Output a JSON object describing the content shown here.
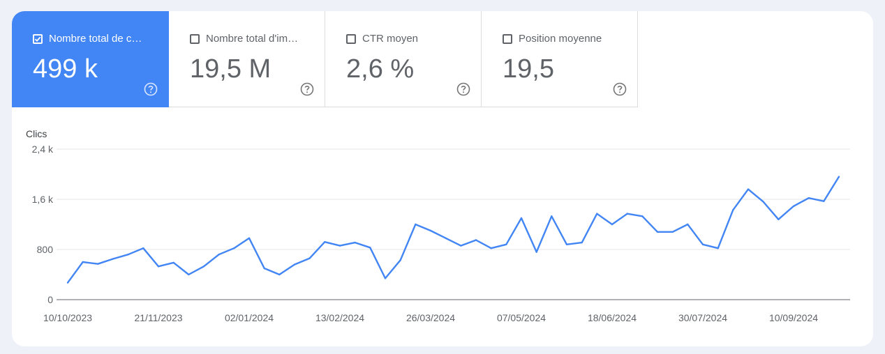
{
  "tiles": [
    {
      "label": "Nombre total de c…",
      "value": "499 k",
      "active": true,
      "name": "tile-clicks"
    },
    {
      "label": "Nombre total d'im…",
      "value": "19,5 M",
      "active": false,
      "name": "tile-impressions"
    },
    {
      "label": "CTR moyen",
      "value": "2,6 %",
      "active": false,
      "name": "tile-ctr"
    },
    {
      "label": "Position moyenne",
      "value": "19,5",
      "active": false,
      "name": "tile-position"
    }
  ],
  "colors": {
    "accent": "#4285f4",
    "line": "#4285f4",
    "grid": "#e6e6e6",
    "text": "#5f6368"
  },
  "chart_data": {
    "type": "line",
    "ylabel": "Clics",
    "ylim": [
      0,
      2400
    ],
    "yticks": [
      {
        "value": 0,
        "label": "0"
      },
      {
        "value": 800,
        "label": "800"
      },
      {
        "value": 1600,
        "label": "1,6 k"
      },
      {
        "value": 2400,
        "label": "2,4 k"
      }
    ],
    "xticks": [
      {
        "index": 0,
        "label": "10/10/2023"
      },
      {
        "index": 6,
        "label": "21/11/2023"
      },
      {
        "index": 12,
        "label": "02/01/2024"
      },
      {
        "index": 18,
        "label": "13/02/2024"
      },
      {
        "index": 24,
        "label": "26/03/2024"
      },
      {
        "index": 30,
        "label": "07/05/2024"
      },
      {
        "index": 36,
        "label": "18/06/2024"
      },
      {
        "index": 42,
        "label": "30/07/2024"
      },
      {
        "index": 48,
        "label": "10/09/2024"
      }
    ],
    "grid": true,
    "series": [
      {
        "values": [
          270,
          600,
          570,
          650,
          720,
          820,
          530,
          590,
          400,
          530,
          720,
          820,
          980,
          500,
          400,
          560,
          660,
          920,
          860,
          910,
          830,
          340,
          630,
          1200,
          1100,
          980,
          860,
          950,
          820,
          880,
          1300,
          760,
          1330,
          880,
          910,
          1370,
          1200,
          1370,
          1330,
          1080,
          1080,
          1200,
          880,
          820,
          1430,
          1760,
          1560,
          1280,
          1490,
          1620,
          1570,
          1960
        ]
      }
    ]
  }
}
